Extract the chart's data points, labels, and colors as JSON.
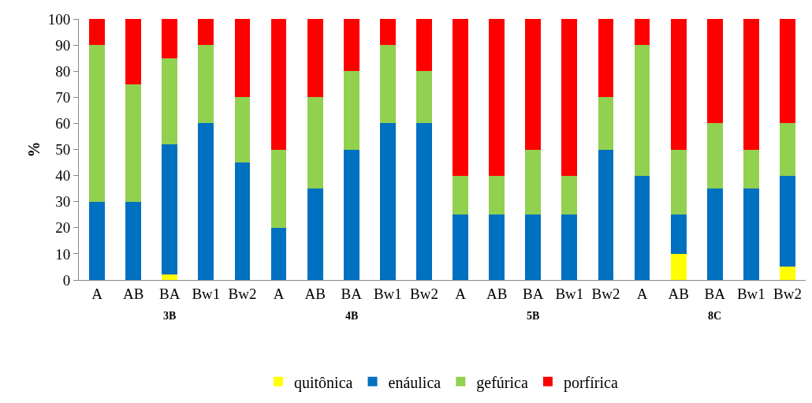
{
  "chart_data": {
    "type": "bar",
    "stacked": true,
    "ylabel": "%",
    "categories": [
      "A",
      "AB",
      "BA",
      "Bw1",
      "Bw2",
      "A",
      "AB",
      "BA",
      "Bw1",
      "Bw2",
      "A",
      "AB",
      "BA",
      "Bw1",
      "Bw2",
      "A",
      "AB",
      "BA",
      "Bw1",
      "Bw2"
    ],
    "series": [
      {
        "name": "quitônica",
        "color": "#ffff00",
        "values": [
          0,
          0,
          2,
          0,
          0,
          0,
          0,
          0,
          0,
          0,
          0,
          0,
          0,
          0,
          0,
          0,
          10,
          0,
          0,
          5
        ]
      },
      {
        "name": "enáulica",
        "color": "#0070c0",
        "values": [
          30,
          30,
          50,
          60,
          45,
          20,
          35,
          50,
          60,
          60,
          25,
          25,
          25,
          25,
          50,
          40,
          15,
          35,
          35,
          35
        ]
      },
      {
        "name": "gefúrica",
        "color": "#92d050",
        "values": [
          60,
          45,
          33,
          30,
          25,
          30,
          35,
          30,
          30,
          20,
          15,
          15,
          25,
          15,
          20,
          50,
          25,
          25,
          15,
          20
        ]
      },
      {
        "name": "porfírica",
        "color": "#ff0000",
        "values": [
          10,
          25,
          15,
          10,
          30,
          50,
          30,
          20,
          10,
          20,
          60,
          60,
          50,
          60,
          30,
          10,
          50,
          40,
          50,
          40
        ]
      }
    ],
    "annotations": [
      "3B",
      "4B",
      "5B",
      "8C"
    ],
    "ylim": [
      0,
      100
    ],
    "yticks": [
      0,
      10,
      20,
      30,
      40,
      50,
      60,
      70,
      80,
      90,
      100
    ],
    "grid": false,
    "legend": "bottom"
  }
}
